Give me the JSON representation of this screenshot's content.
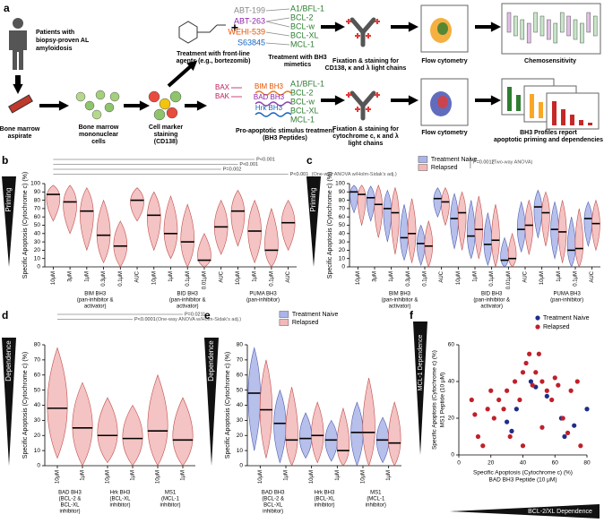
{
  "panel_a": {
    "label": "a",
    "patients": [
      "Patients with",
      "biopsy-proven AL",
      "amyloidosis"
    ],
    "aspirate": [
      "Bone marrow",
      "aspirate"
    ],
    "mononuclear": [
      "Bone marrow",
      "mononuclear",
      "cells"
    ],
    "marker": [
      "Cell marker",
      "staining",
      "(CD138)"
    ],
    "frontline": [
      "Treatment with front-line",
      "agents (e.g., bortezomib)"
    ],
    "plus": "+",
    "mimetics": [
      "ABT-199",
      "ABT-263",
      "WEHI-539",
      "S63845"
    ],
    "targets_top": [
      "A1/BFL-1",
      "BCL-2",
      "BCL-w",
      "BCL-XL",
      "MCL-1"
    ],
    "mimetic_treatment": [
      "Treatment with BH3",
      "mimetics"
    ],
    "fixation_top": [
      "Fixation & staining for",
      "CD138, κ and λ light chains"
    ],
    "flow_top": "Flow cytometry",
    "chemosensitivity": "Chemosensitivity",
    "effectors": [
      "BAX",
      "BAK"
    ],
    "peptides": [
      "BIM BH3",
      "BAD BH3",
      "Hrk BH3"
    ],
    "targets_bottom": [
      "A1/BFL-1",
      "BCL-2",
      "BCL-w",
      "BCL-XL",
      "MCL-1"
    ],
    "peptide_treatment": [
      "Pro-apoptotic stimulus treatment",
      "(BH3 Peptides)"
    ],
    "fixation_bottom": [
      "Fixation & staining for",
      "cytochrome c, κ and λ",
      "light chains"
    ],
    "flow_bottom": "Flow cytometry",
    "profiles": [
      "BH3 Profiles report",
      "apoptotic priming and dependencies"
    ]
  },
  "chart_data": [
    {
      "type": "violin",
      "panel": "b",
      "side_label": "Priming",
      "y_label": "Specific Apoptosis (Cytochrome c) (%)",
      "ylim": [
        0,
        100
      ],
      "yticks": [
        0,
        10,
        20,
        30,
        40,
        50,
        60,
        70,
        80,
        90,
        100
      ],
      "groups": [
        {
          "lines": [
            "BIM BH3",
            "(pan-inhibitor &",
            "activator)"
          ],
          "categories": [
            "10μM",
            "3μM",
            "1μM",
            "0.3μM",
            "0.1μM",
            "AUC"
          ]
        },
        {
          "lines": [
            "BID BH3",
            "(pan-inhibitor &",
            "activator)"
          ],
          "categories": [
            "10μM",
            "1μM",
            "0.1μM",
            "0.01μM",
            "AUC"
          ]
        },
        {
          "lines": [
            "PUMA BH3",
            "(pan-inhibitor)"
          ],
          "categories": [
            "10μM",
            "1μM",
            "0.1μM",
            "AUC"
          ]
        }
      ],
      "series": [
        {
          "color": "#f2b8b8",
          "median": [
            87,
            78,
            67,
            38,
            25,
            80,
            62,
            40,
            30,
            8,
            48,
            67,
            43,
            20,
            53
          ],
          "low": [
            55,
            40,
            20,
            5,
            0,
            55,
            20,
            10,
            0,
            0,
            15,
            25,
            5,
            0,
            20
          ],
          "high": [
            98,
            98,
            95,
            80,
            55,
            95,
            90,
            85,
            75,
            40,
            80,
            92,
            80,
            70,
            80
          ]
        }
      ],
      "annotations": [
        "P<0.001",
        "P<0.001",
        "P=0.002",
        "P<0.001"
      ],
      "note": "(One-way ANOVA w/Holm-Sidak's adj.)"
    },
    {
      "type": "violin",
      "panel": "c",
      "side_label": "Priming",
      "y_label": "Specific Apoptosis (Cytochrome c) (%)",
      "ylim": [
        0,
        100
      ],
      "yticks": [
        0,
        10,
        20,
        30,
        40,
        50,
        60,
        70,
        80,
        90,
        100
      ],
      "legend": "upper center",
      "groups": [
        {
          "lines": [
            "BIM BH3",
            "(pan-inhibitor &",
            "activator)"
          ],
          "categories": [
            "10μM",
            "3μM",
            "1μM",
            "0.3μM",
            "0.1μM",
            "AUC"
          ]
        },
        {
          "lines": [
            "BID BH3",
            "(pan-inhibitor &",
            "activator)"
          ],
          "categories": [
            "10μM",
            "1μM",
            "0.1μM",
            "0.01μM",
            "AUC"
          ]
        },
        {
          "lines": [
            "PUMA BH3",
            "(pan-inhibitor)"
          ],
          "categories": [
            "10μM",
            "1μM",
            "0.1μM",
            "AUC"
          ]
        }
      ],
      "series": [
        {
          "name": "Treatment Naive",
          "color": "#aab4e8",
          "median": [
            90,
            83,
            70,
            35,
            28,
            82,
            58,
            37,
            27,
            8,
            45,
            72,
            45,
            20,
            58
          ],
          "low": [
            65,
            55,
            30,
            8,
            2,
            60,
            22,
            10,
            2,
            0,
            18,
            35,
            10,
            0,
            25
          ],
          "high": [
            98,
            97,
            92,
            75,
            50,
            95,
            88,
            80,
            65,
            35,
            78,
            92,
            78,
            60,
            78
          ]
        },
        {
          "name": "Relapsed",
          "color": "#f2b8b8",
          "median": [
            87,
            75,
            65,
            40,
            25,
            78,
            65,
            45,
            32,
            10,
            50,
            65,
            42,
            22,
            52
          ],
          "low": [
            50,
            35,
            15,
            5,
            0,
            50,
            20,
            10,
            0,
            0,
            15,
            25,
            5,
            0,
            20
          ],
          "high": [
            98,
            98,
            95,
            82,
            55,
            95,
            90,
            85,
            75,
            40,
            80,
            90,
            80,
            70,
            80
          ]
        }
      ],
      "annotations": [
        "P=0.0012"
      ],
      "note": "(Two-way ANOVA)"
    },
    {
      "type": "violin",
      "panel": "d",
      "side_label": "Dependence",
      "y_label": "Specific Apoptosis (Cytochrome c) (%)",
      "ylim": [
        0,
        80
      ],
      "yticks": [
        0,
        10,
        20,
        30,
        40,
        50,
        60,
        70,
        80
      ],
      "groups": [
        {
          "lines": [
            "BAD BH3",
            "(BCL-2 &",
            "BCL-XL",
            "inhibitor)"
          ],
          "categories": [
            "10μM",
            "1μM"
          ]
        },
        {
          "lines": [
            "Hrk BH3",
            "(BCL-XL",
            "inhibitor)"
          ],
          "categories": [
            "10μM",
            "1μM"
          ]
        },
        {
          "lines": [
            "MS1",
            "(MCL-1",
            "inhibitor)"
          ],
          "categories": [
            "10μM",
            "1μM"
          ]
        }
      ],
      "series": [
        {
          "color": "#f2b8b8",
          "median": [
            38,
            25,
            20,
            18,
            23,
            17
          ],
          "low": [
            5,
            0,
            2,
            0,
            0,
            0
          ],
          "high": [
            78,
            55,
            45,
            40,
            60,
            45
          ]
        }
      ],
      "annotations": [
        "P=0.0211",
        "P<0.0001"
      ],
      "note": "(One-way ANOVA w/Holm-Sidak's adj.)"
    },
    {
      "type": "violin",
      "panel": "e",
      "side_label": "Dependence",
      "y_label": "Specific Apoptosis (Cytochrome c) (%)",
      "ylim": [
        0,
        80
      ],
      "yticks": [
        0,
        10,
        20,
        30,
        40,
        50,
        60,
        70,
        80
      ],
      "legend": "upper center",
      "groups": [
        {
          "lines": [
            "BAD BH3",
            "(BCL-2 &",
            "BCL-XL",
            "inhibitor)"
          ],
          "categories": [
            "10μM",
            "1μM"
          ]
        },
        {
          "lines": [
            "Hrk BH3",
            "(BCL-XL",
            "inhibitor)"
          ],
          "categories": [
            "10μM",
            "1μM"
          ]
        },
        {
          "lines": [
            "MS1",
            "(MCL-1",
            "inhibitor)"
          ],
          "categories": [
            "10μM",
            "1μM"
          ]
        }
      ],
      "series": [
        {
          "name": "Treatment Naive",
          "color": "#aab4e8",
          "median": [
            48,
            28,
            18,
            17,
            22,
            17
          ],
          "low": [
            10,
            2,
            5,
            3,
            0,
            2
          ],
          "high": [
            78,
            50,
            35,
            30,
            42,
            32
          ]
        },
        {
          "name": "Relapsed",
          "color": "#f2b8b8",
          "median": [
            37,
            17,
            20,
            10,
            22,
            15
          ],
          "low": [
            5,
            0,
            2,
            0,
            0,
            0
          ],
          "high": [
            70,
            52,
            42,
            38,
            58,
            42
          ]
        }
      ]
    },
    {
      "type": "scatter",
      "panel": "f",
      "x_label": [
        "Specific Apoptosis (Cytochrome c) (%)",
        "BAD BH3 Peptide (10 μM)"
      ],
      "y_label": [
        "Specific Apoptosis (Cytochrome c) (%)",
        "MS1 Peptide (10 μM)"
      ],
      "x_dependence": "BCL-2/XL Dependence",
      "y_dependence": "MCL-1 Dependence",
      "xlim": [
        0,
        80
      ],
      "xticks": [
        0,
        20,
        40,
        60,
        80
      ],
      "ylim": [
        0,
        60
      ],
      "yticks": [
        0,
        20,
        40,
        60
      ],
      "legend": "upper right",
      "series": [
        {
          "name": "Treatment Naive",
          "color": "#1f2d8a",
          "x": [
            30,
            33,
            36,
            45,
            48,
            55,
            64,
            66,
            72,
            80
          ],
          "y": [
            18,
            13,
            25,
            40,
            37,
            32,
            20,
            10,
            16,
            25
          ]
        },
        {
          "name": "Relapsed",
          "color": "#c0202a",
          "x": [
            8,
            10,
            12,
            15,
            18,
            20,
            22,
            25,
            28,
            30,
            32,
            35,
            38,
            40,
            42,
            44,
            46,
            48,
            50,
            52,
            55,
            58,
            60,
            62,
            65,
            68,
            70,
            74,
            76,
            52,
            40
          ],
          "y": [
            30,
            22,
            10,
            5,
            25,
            35,
            20,
            30,
            25,
            35,
            10,
            40,
            30,
            45,
            50,
            55,
            38,
            45,
            55,
            40,
            35,
            30,
            42,
            38,
            20,
            12,
            35,
            40,
            5,
            15,
            5
          ]
        }
      ]
    }
  ]
}
